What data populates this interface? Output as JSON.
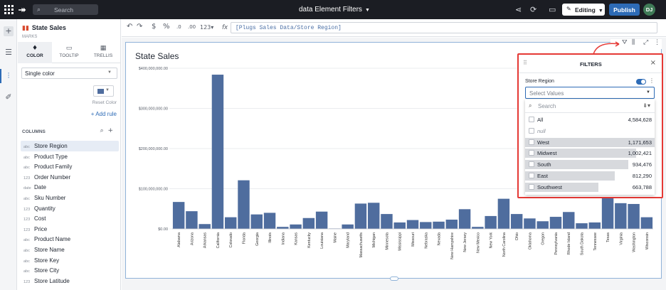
{
  "topbar": {
    "logo": "⯮",
    "search_placeholder": "Search",
    "doc_title": "data Element Filters",
    "editing_label": "Editing",
    "publish_label": "Publish",
    "avatar_initials": "DJ"
  },
  "panel": {
    "title": "State Sales",
    "marks_label": "MARKS",
    "tabs": [
      {
        "label": "COLOR",
        "icon": "paint-icon"
      },
      {
        "label": "TOOLTIP",
        "icon": "tooltip-icon"
      },
      {
        "label": "TRELLIS",
        "icon": "trellis-icon"
      }
    ],
    "color_mode": "Single color",
    "swatch_color": "#4f6d9e",
    "reset_color_label": "Reset Color",
    "add_rule_label": "+ Add rule",
    "columns_header": "COLUMNS",
    "columns": [
      {
        "type": "abc",
        "name": "Store Region"
      },
      {
        "type": "abc",
        "name": "Product Type"
      },
      {
        "type": "abc",
        "name": "Product Family"
      },
      {
        "type": "123",
        "name": "Order Number"
      },
      {
        "type": "date",
        "name": "Date"
      },
      {
        "type": "abc",
        "name": "Sku Number"
      },
      {
        "type": "123",
        "name": "Quantity"
      },
      {
        "type": "123",
        "name": "Cost"
      },
      {
        "type": "123",
        "name": "Price"
      },
      {
        "type": "abc",
        "name": "Product Name"
      },
      {
        "type": "abc",
        "name": "Store Name"
      },
      {
        "type": "abc",
        "name": "Store Key"
      },
      {
        "type": "abc",
        "name": "Store City"
      },
      {
        "type": "123",
        "name": "Store Latitude"
      }
    ]
  },
  "formula_bar": {
    "format_number": "123",
    "fx_label": "fx",
    "formula": "[Plugs Sales Data/Store Region]"
  },
  "chart_data": {
    "type": "bar",
    "title": "State Sales",
    "xlabel": "",
    "ylabel": "",
    "ylim": [
      0,
      400000000
    ],
    "yticks": [
      "$0.00",
      "$100,000,000.00",
      "$200,000,000.00",
      "$300,000,000.00",
      "$400,000,000.00"
    ],
    "bar_color": "#4f6d9e",
    "grid": true,
    "categories": [
      "Alabama",
      "Arizona",
      "Arkansas",
      "California",
      "Colorado",
      "Florida",
      "Georgia",
      "Illinois",
      "Indiana",
      "Kansas",
      "Kentucky",
      "Louisiana",
      "Maine",
      "Maryland",
      "Massachusetts",
      "Michigan",
      "Minnesota",
      "Mississippi",
      "Missouri",
      "Nebraska",
      "Nevada",
      "New Hampshire",
      "New Jersey",
      "New Mexico",
      "New York",
      "North Carolina",
      "Ohio",
      "Oklahoma",
      "Oregon",
      "Pennsylvania",
      "Rhode Island",
      "South Dakota",
      "Tennessee",
      "Texas",
      "Virginia",
      "Washington",
      "Wisconsin"
    ],
    "values": [
      67000000,
      44000000,
      12000000,
      384000000,
      29000000,
      121000000,
      36000000,
      40000000,
      5000000,
      11000000,
      27000000,
      43000000,
      1000000,
      11000000,
      63000000,
      65000000,
      37000000,
      16000000,
      22000000,
      17000000,
      18000000,
      23000000,
      49000000,
      5000000,
      32000000,
      75000000,
      37000000,
      26000000,
      19000000,
      30000000,
      42000000,
      14000000,
      16000000,
      95000000,
      64000000,
      62000000,
      29000000
    ]
  },
  "element_toolbar": [
    "filter-icon",
    "chart-options-icon",
    "expand-icon",
    "more-icon"
  ],
  "filters": {
    "title": "FILTERS",
    "field_label": "Store Region",
    "select_placeholder": "Select Values",
    "search_placeholder": "Search",
    "items": [
      {
        "label": "All",
        "count": "4,584,628",
        "fraction": 0
      },
      {
        "label": "null",
        "count": "",
        "fraction": 0
      },
      {
        "label": "West",
        "count": "1,171,653",
        "fraction": 1.0
      },
      {
        "label": "Midwest",
        "count": "1,002,421",
        "fraction": 0.855
      },
      {
        "label": "South",
        "count": "934,476",
        "fraction": 0.798
      },
      {
        "label": "East",
        "count": "812,290",
        "fraction": 0.693
      },
      {
        "label": "Southwest",
        "count": "663,788",
        "fraction": 0.567
      }
    ]
  }
}
